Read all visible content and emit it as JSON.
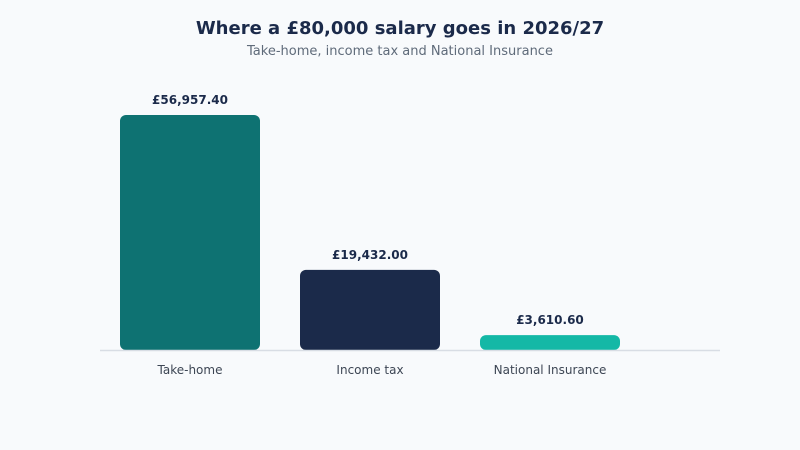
{
  "chart_data": {
    "type": "bar",
    "title": "Where a £80,000 salary goes in 2026/27",
    "subtitle": "Take-home, income tax and National Insurance",
    "categories": [
      "Take-home",
      "Income tax",
      "National Insurance"
    ],
    "values": [
      56957.4,
      19432.0,
      3610.6
    ],
    "value_labels": [
      "£56,957.40",
      "£19,432.00",
      "£3,610.60"
    ],
    "colors": [
      "#0e7272",
      "#1b2a4a",
      "#14b8a6"
    ],
    "baseline_color": "#d8dde4",
    "grid": false,
    "legend": "none",
    "ylim": [
      0,
      56957.4
    ]
  }
}
